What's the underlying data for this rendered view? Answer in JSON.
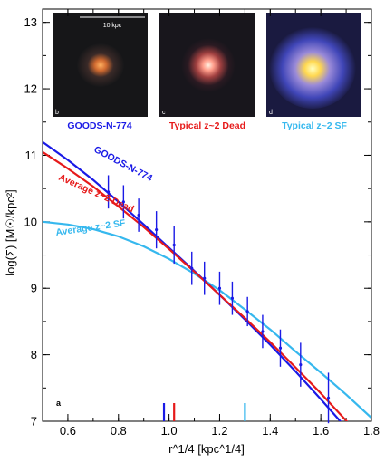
{
  "chart_data": {
    "type": "line",
    "xlabel": "r^1/4 [kpc^1/4]",
    "ylabel": "log(Σ) [M☉/kpc²]",
    "xlim": [
      0.5,
      1.8
    ],
    "ylim": [
      7,
      13.2
    ],
    "xticks": [
      "0.6",
      "0.8",
      "1.0",
      "1.2",
      "1.4",
      "1.6",
      "1.8"
    ],
    "yticks": [
      "7",
      "8",
      "9",
      "10",
      "11",
      "12",
      "13"
    ],
    "panel_label": "a",
    "series": [
      {
        "name": "GOODS-N-774",
        "color": "#1a1ae6",
        "x": [
          0.5,
          0.6,
          0.7,
          0.8,
          0.9,
          1.0,
          1.1,
          1.2,
          1.3,
          1.4,
          1.5,
          1.6,
          1.7,
          1.8
        ],
        "y": [
          11.2,
          10.93,
          10.63,
          10.3,
          9.96,
          9.61,
          9.26,
          8.9,
          8.53,
          8.15,
          7.75,
          7.33,
          6.9,
          6.45
        ],
        "effective_radius_marker": 0.98
      },
      {
        "name": "Average z~2 Dead",
        "color": "#e61a1a",
        "x": [
          0.5,
          0.6,
          0.7,
          0.8,
          0.9,
          1.0,
          1.1,
          1.2,
          1.3,
          1.4,
          1.5,
          1.6,
          1.7,
          1.8
        ],
        "y": [
          11.05,
          10.8,
          10.53,
          10.23,
          9.92,
          9.59,
          9.25,
          8.9,
          8.55,
          8.19,
          7.81,
          7.42,
          7.01,
          6.6
        ],
        "effective_radius_marker": 1.02
      },
      {
        "name": "Average z~2 SF",
        "color": "#36b8ee",
        "x": [
          0.5,
          0.6,
          0.7,
          0.8,
          0.9,
          1.0,
          1.1,
          1.2,
          1.3,
          1.4,
          1.5,
          1.6,
          1.7,
          1.8
        ],
        "y": [
          10.0,
          9.96,
          9.89,
          9.78,
          9.63,
          9.44,
          9.22,
          8.97,
          8.68,
          8.38,
          8.05,
          7.73,
          7.4,
          7.05
        ],
        "effective_radius_marker": 1.3
      }
    ],
    "data_points": {
      "name": "GOODS-N-774",
      "color": "#1a1ae6",
      "x": [
        0.76,
        0.82,
        0.88,
        0.95,
        1.02,
        1.09,
        1.14,
        1.2,
        1.25,
        1.31,
        1.37,
        1.44,
        1.52,
        1.63
      ],
      "y": [
        10.45,
        10.3,
        10.1,
        9.88,
        9.65,
        9.3,
        9.15,
        9.0,
        8.85,
        8.65,
        8.35,
        8.1,
        7.85,
        7.35
      ],
      "yerr": [
        0.25,
        0.25,
        0.25,
        0.28,
        0.28,
        0.25,
        0.25,
        0.25,
        0.25,
        0.22,
        0.25,
        0.28,
        0.33,
        0.38
      ]
    },
    "inset_panels": [
      {
        "letter": "b",
        "caption": "GOODS-N-774",
        "caption_color": "#1a1ae6",
        "scale_bar_label": "10 kpc"
      },
      {
        "letter": "c",
        "caption": "Typical z~2 Dead",
        "caption_color": "#e61a1a"
      },
      {
        "letter": "d",
        "caption": "Typical z~2 SF",
        "caption_color": "#36b8ee"
      }
    ]
  }
}
